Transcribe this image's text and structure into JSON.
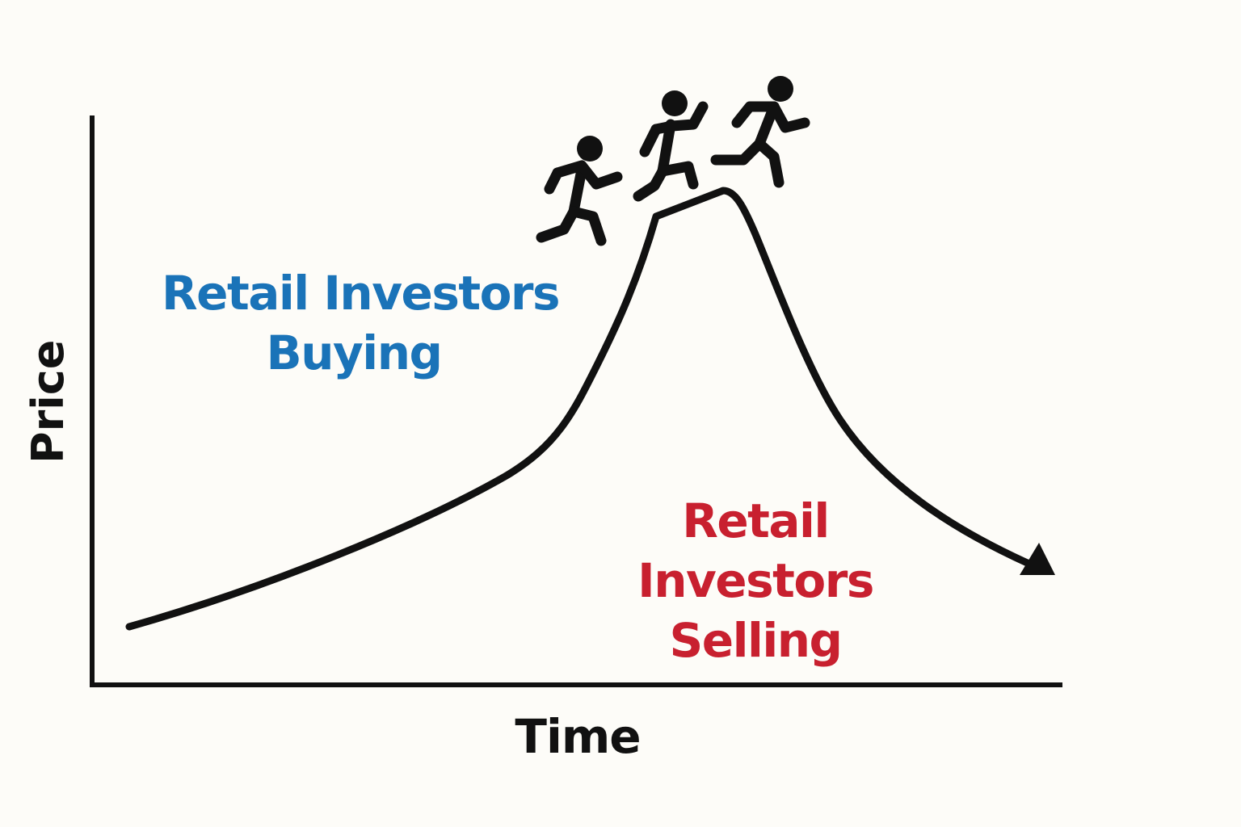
{
  "axes": {
    "x_label": "Time",
    "y_label": "Price"
  },
  "annotations": {
    "buying": {
      "lines": [
        "Retail Investors",
        "Buying"
      ],
      "color": "#1a73b8"
    },
    "selling": {
      "lines": [
        "Retail",
        "Investors",
        "Selling"
      ],
      "color": "#c8202f"
    }
  },
  "figures": {
    "count": 3,
    "icon": "running-person-icon"
  },
  "colors": {
    "line": "#111111",
    "background": "#fdfcf8"
  }
}
